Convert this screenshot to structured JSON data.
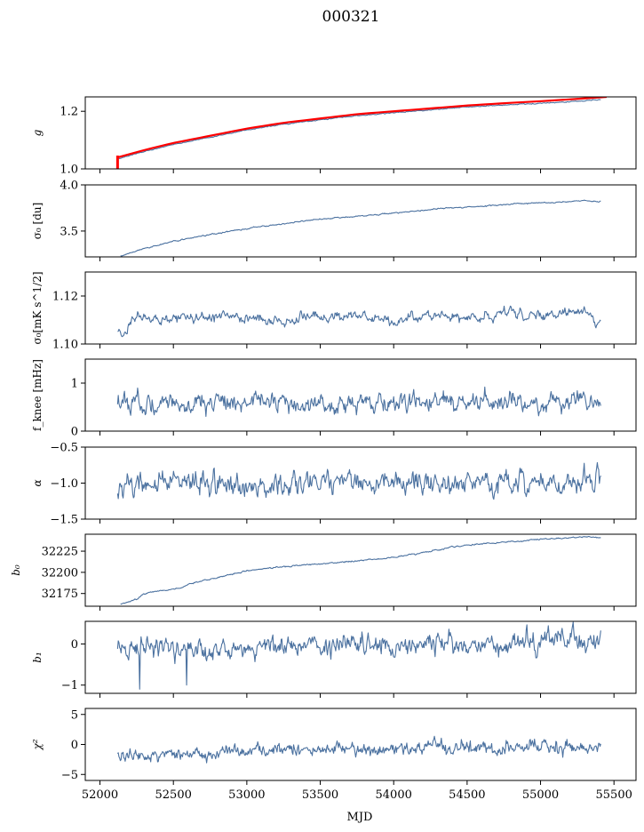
{
  "title": "000321",
  "colors": {
    "series": "#4c72a0",
    "reference": "#ff0000",
    "frame": "#000000"
  },
  "chart_data": {
    "type": "line",
    "title": "000321",
    "xlabel": "MJD",
    "xlim": [
      51900,
      55650
    ],
    "xticks": [
      52000,
      52500,
      53000,
      53500,
      54000,
      54500,
      55000,
      55500
    ],
    "xtick_labels": [
      "52000",
      "52500",
      "53000",
      "53500",
      "54000",
      "54500",
      "55000",
      "55500"
    ],
    "data_x_range": [
      52120,
      55410
    ],
    "grid": false,
    "legend": "none",
    "panels": [
      {
        "id": "g",
        "ylabel": "g",
        "ylim": [
          1.0,
          1.25
        ],
        "yticks": [
          1.0,
          1.2
        ],
        "ytick_labels": [
          "1.0",
          "1.2"
        ],
        "series": [
          {
            "role": "measured",
            "x": [
              52120,
              52300,
              52500,
              52750,
              53000,
              53250,
              53500,
              53750,
              54000,
              54250,
              54500,
              54750,
              55000,
              55250,
              55410
            ],
            "y": [
              1.035,
              1.06,
              1.085,
              1.11,
              1.135,
              1.155,
              1.17,
              1.185,
              1.195,
              1.205,
              1.215,
              1.222,
              1.228,
              1.235,
              1.24
            ]
          },
          {
            "role": "reference",
            "x": [
              52120,
              52300,
              52500,
              52750,
              53000,
              53250,
              53500,
              53750,
              54000,
              54250,
              54500,
              54750,
              55000,
              55250,
              55450
            ],
            "y": [
              1.04,
              1.065,
              1.09,
              1.115,
              1.14,
              1.16,
              1.175,
              1.19,
              1.2,
              1.21,
              1.22,
              1.228,
              1.235,
              1.243,
              1.25
            ]
          }
        ],
        "noise": 0.001
      },
      {
        "id": "sigma0_du",
        "ylabel": "σ₀ [du]",
        "ylim": [
          3.22,
          4.0
        ],
        "yticks": [
          3.5,
          4.0
        ],
        "ytick_labels": [
          "3.5",
          "4.0"
        ],
        "series": [
          {
            "x": [
              52140,
              52300,
              52500,
              52700,
              52900,
              53100,
              53300,
              53500,
              53700,
              53900,
              54100,
              54300,
              54500,
              54700,
              54900,
              55100,
              55300,
              55410
            ],
            "y": [
              3.23,
              3.31,
              3.39,
              3.45,
              3.5,
              3.55,
              3.59,
              3.63,
              3.65,
              3.68,
              3.71,
              3.74,
              3.76,
              3.78,
              3.8,
              3.81,
              3.83,
              3.82
            ]
          }
        ],
        "noise": 0.004
      },
      {
        "id": "sigma0_mks",
        "ylabel": "σ₀[mK s^1/2]",
        "ylim": [
          1.1,
          1.13
        ],
        "yticks": [
          1.1,
          1.12
        ],
        "ytick_labels": [
          "1.10",
          "1.12"
        ],
        "series": [
          {
            "x": [
              52120,
              52150,
              52250,
              52400,
              52600,
              52800,
              53000,
              53200,
              53400,
              53600,
              53800,
              54000,
              54200,
              54400,
              54600,
              54800,
              55000,
              55200,
              55300,
              55380,
              55410
            ],
            "y": [
              1.105,
              1.103,
              1.112,
              1.109,
              1.111,
              1.111,
              1.112,
              1.109,
              1.112,
              1.111,
              1.112,
              1.109,
              1.112,
              1.112,
              1.111,
              1.113,
              1.111,
              1.113,
              1.114,
              1.108,
              1.109
            ]
          }
        ],
        "noise": 0.0012
      },
      {
        "id": "fknee",
        "ylabel": "f_knee [mHz]",
        "ylim": [
          0,
          1.5
        ],
        "yticks": [
          0,
          1
        ],
        "ytick_labels": [
          "0",
          "1"
        ],
        "series": [
          {
            "x": [
              52120,
              55410
            ],
            "y": [
              0.6,
              0.6
            ]
          }
        ],
        "noise": 0.12
      },
      {
        "id": "alpha",
        "ylabel": "α",
        "ylim": [
          -1.5,
          -0.5
        ],
        "yticks": [
          -1.5,
          -1.0,
          -0.5
        ],
        "ytick_labels": [
          "−1.5",
          "−1.0",
          "−0.5"
        ],
        "series": [
          {
            "x": [
              52120,
              55410
            ],
            "y": [
              -1.0,
              -1.0
            ]
          }
        ],
        "noise": 0.09
      },
      {
        "id": "b0",
        "ylabel": "b₀",
        "ylim": [
          32160,
          32245
        ],
        "yticks": [
          32175,
          32200,
          32225
        ],
        "ytick_labels": [
          "32175",
          "32200",
          "32225"
        ],
        "series": [
          {
            "x": [
              52140,
              52250,
              52300,
              52400,
              52550,
              52600,
              52800,
              53000,
              53200,
              53500,
              53800,
              54000,
              54200,
              54400,
              54600,
              54800,
              55000,
              55200,
              55300,
              55410
            ],
            "y": [
              32163,
              32168,
              32175,
              32178,
              32181,
              32186,
              32194,
              32202,
              32206,
              32210,
              32214,
              32218,
              32223,
              32230,
              32234,
              32236,
              32239,
              32241,
              32242,
              32241
            ]
          }
        ],
        "noise": 0.5
      },
      {
        "id": "b1",
        "ylabel": "b₁",
        "ylim": [
          -1.2,
          0.55
        ],
        "yticks": [
          -1,
          0
        ],
        "ytick_labels": [
          "−1",
          "0"
        ],
        "series": [
          {
            "x": [
              52120,
              52400,
              52700,
              53000,
              53500,
              54000,
              54500,
              55000,
              55410
            ],
            "y": [
              -0.15,
              -0.12,
              -0.15,
              -0.05,
              -0.02,
              -0.05,
              0.02,
              0.05,
              0.05
            ]
          }
        ],
        "spikes": [
          {
            "x": 52270,
            "y": -1.1
          },
          {
            "x": 52590,
            "y": -1.0
          }
        ],
        "noise": 0.15
      },
      {
        "id": "chi2",
        "ylabel": "χ²",
        "ylim": [
          -6,
          6
        ],
        "yticks": [
          -5,
          0,
          5
        ],
        "ytick_labels": [
          "−5",
          "0",
          "5"
        ],
        "series": [
          {
            "x": [
              52120,
              52300,
              52600,
              53000,
              53500,
              54000,
              54500,
              55000,
              55410
            ],
            "y": [
              -2.0,
              -2.0,
              -1.8,
              -1.2,
              -1.0,
              -0.8,
              -0.6,
              -0.4,
              -0.5
            ]
          }
        ],
        "noise": 0.7
      }
    ]
  }
}
